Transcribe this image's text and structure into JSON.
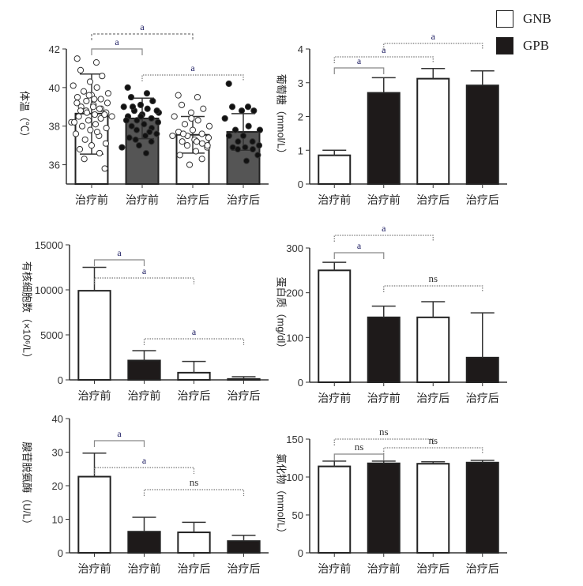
{
  "legend": [
    {
      "label": "GNB",
      "color": "#ffffff"
    },
    {
      "label": "GPB",
      "color": "#1e1a1a"
    }
  ],
  "chart_data": [
    {
      "type": "bar",
      "ylabel": "体温（℃）",
      "categories": [
        "治疗前",
        "治疗前",
        "治疗后",
        "治疗后"
      ],
      "groups": [
        "GNB",
        "GPB",
        "GNB",
        "GPB"
      ],
      "ylim": [
        35,
        42
      ],
      "yticks": [
        36,
        38,
        40,
        42
      ],
      "values": [
        38.65,
        38.4,
        37.55,
        37.7
      ],
      "err_low": [
        36.55,
        37.35,
        36.6,
        36.75
      ],
      "err_high": [
        40.7,
        39.45,
        38.5,
        38.65
      ],
      "points": [
        [
          41.5,
          41.3,
          40.9,
          40.6,
          40.3,
          40.1,
          40,
          39.8,
          39.7,
          39.6,
          39.5,
          39.4,
          39.3,
          39.2,
          39.1,
          39,
          38.9,
          38.8,
          38.7,
          38.6,
          38.5,
          38.4,
          38.3,
          38.2,
          38.1,
          38,
          37.9,
          37.8,
          37.6,
          37.5,
          37.3,
          37.1,
          37,
          36.8,
          36.6,
          36.3,
          35.8,
          39.0,
          39.2,
          38.9,
          38.7,
          38.5,
          39.4,
          38.8,
          38.6,
          39.6,
          38.2,
          37.7
        ],
        [
          40,
          39.7,
          39.5,
          39.3,
          39.1,
          39,
          38.9,
          38.8,
          38.7,
          38.6,
          38.5,
          38.4,
          38.3,
          38.2,
          38.1,
          38,
          37.9,
          37.8,
          37.6,
          37.5,
          37.4,
          37.2,
          37,
          36.9,
          36.6,
          39,
          38.8,
          38.5,
          38.3,
          37.7,
          37.3
        ],
        [
          39.6,
          39.5,
          39.1,
          38.9,
          38.7,
          38.5,
          38.3,
          38.1,
          38,
          37.8,
          37.7,
          37.6,
          37.5,
          37.4,
          37.3,
          37.2,
          37.1,
          37,
          36.9,
          36.7,
          36.5,
          36.3,
          36,
          37.5,
          37.2,
          37.6,
          37,
          38.4
        ],
        [
          40.2,
          39,
          39,
          38.8,
          38.8,
          38.4,
          38,
          37.8,
          37.8,
          37.5,
          37.5,
          37.2,
          37.2,
          37,
          36.9,
          36.9,
          36.8,
          36.8,
          36.5,
          36.2
        ]
      ],
      "significance": [
        {
          "from": 0,
          "to": 1,
          "label": "a",
          "style": "solid",
          "level": 1
        },
        {
          "from": 0,
          "to": 2,
          "label": "a",
          "style": "dashed",
          "level": 2
        },
        {
          "from": 1,
          "to": 3,
          "label": "a",
          "style": "dotted",
          "level": 0
        }
      ]
    },
    {
      "type": "bar",
      "ylabel": "葡萄糖（mmol/L）",
      "categories": [
        "治疗前",
        "治疗前",
        "治疗后",
        "治疗后"
      ],
      "groups": [
        "GNB",
        "GPB",
        "GNB",
        "GPB"
      ],
      "ylim": [
        0,
        4
      ],
      "yticks": [
        0,
        1,
        2,
        3,
        4
      ],
      "values": [
        0.85,
        2.7,
        3.12,
        2.92
      ],
      "err_low": [
        0.85,
        2.7,
        3.12,
        2.92
      ],
      "err_high": [
        1.0,
        3.15,
        3.42,
        3.35
      ],
      "significance": [
        {
          "from": 0,
          "to": 1,
          "label": "a",
          "style": "solid",
          "level": 0
        },
        {
          "from": 0,
          "to": 2,
          "label": "a",
          "style": "dotted",
          "level": 1
        },
        {
          "from": 1,
          "to": 3,
          "label": "a",
          "style": "dotted",
          "level": 2
        }
      ]
    },
    {
      "type": "bar",
      "ylabel": "有核细胞数（×10⁶/L）",
      "categories": [
        "治疗前",
        "治疗前",
        "治疗后",
        "治疗后"
      ],
      "groups": [
        "GNB",
        "GPB",
        "GNB",
        "GPB"
      ],
      "ylim": [
        0,
        15000
      ],
      "yticks": [
        0,
        5000,
        10000,
        15000
      ],
      "values": [
        9900,
        2150,
        800,
        100
      ],
      "err_low": [
        9900,
        2150,
        800,
        100
      ],
      "err_high": [
        12500,
        3250,
        2050,
        350
      ],
      "significance": [
        {
          "from": 0,
          "to": 1,
          "label": "a",
          "style": "solid",
          "level": 2
        },
        {
          "from": 0,
          "to": 2,
          "label": "a",
          "style": "dotted",
          "level": 1
        },
        {
          "from": 1,
          "to": 3,
          "label": "a",
          "style": "dotted",
          "level": 0
        }
      ]
    },
    {
      "type": "bar",
      "ylabel": "蛋白质（mg/dl）",
      "categories": [
        "治疗前",
        "治疗前",
        "治疗后",
        "治疗后"
      ],
      "groups": [
        "GNB",
        "GPB",
        "GNB",
        "GPB"
      ],
      "ylim": [
        0,
        300
      ],
      "yticks": [
        0,
        100,
        200,
        300
      ],
      "values": [
        250,
        145,
        145,
        55
      ],
      "err_low": [
        250,
        145,
        145,
        55
      ],
      "err_high": [
        268,
        170,
        180,
        155
      ],
      "significance": [
        {
          "from": 0,
          "to": 1,
          "label": "a",
          "style": "solid",
          "level": 1
        },
        {
          "from": 0,
          "to": 2,
          "label": "a",
          "style": "dotted",
          "level": 2
        },
        {
          "from": 1,
          "to": 3,
          "label": "ns",
          "style": "dotted",
          "level": 0
        }
      ]
    },
    {
      "type": "bar",
      "ylabel": "腺苷脱氨酶（U/L）",
      "categories": [
        "治疗前",
        "治疗前",
        "治疗后",
        "治疗后"
      ],
      "groups": [
        "GNB",
        "GPB",
        "GNB",
        "GPB"
      ],
      "ylim": [
        0,
        40
      ],
      "yticks": [
        0,
        10,
        20,
        30,
        40
      ],
      "values": [
        22.7,
        6.3,
        6.1,
        3.5
      ],
      "err_low": [
        22.7,
        6.3,
        6.1,
        3.5
      ],
      "err_high": [
        29.7,
        10.6,
        9.1,
        5.2
      ],
      "significance": [
        {
          "from": 0,
          "to": 1,
          "label": "a",
          "style": "solid",
          "level": 2
        },
        {
          "from": 0,
          "to": 2,
          "label": "a",
          "style": "dotted",
          "level": 1
        },
        {
          "from": 1,
          "to": 3,
          "label": "ns",
          "style": "dotted",
          "level": 0
        }
      ]
    },
    {
      "type": "bar",
      "ylabel": "氯化物（mmol/L）",
      "categories": [
        "治疗前",
        "治疗前",
        "治疗后",
        "治疗后"
      ],
      "groups": [
        "GNB",
        "GPB",
        "GNB",
        "GPB"
      ],
      "ylim": [
        0,
        150
      ],
      "yticks": [
        0,
        50,
        100,
        150
      ],
      "values": [
        114,
        118,
        117.5,
        119
      ],
      "err_low": [
        114,
        118,
        117.5,
        119
      ],
      "err_high": [
        121,
        121,
        120,
        122
      ],
      "significance": [
        {
          "from": 0,
          "to": 1,
          "label": "ns",
          "style": "solid",
          "level": 0
        },
        {
          "from": 0,
          "to": 2,
          "label": "ns",
          "style": "dotted",
          "level": 1
        },
        {
          "from": 1,
          "to": 3,
          "label": "ns",
          "style": "dotted",
          "level": 0
        }
      ]
    }
  ]
}
